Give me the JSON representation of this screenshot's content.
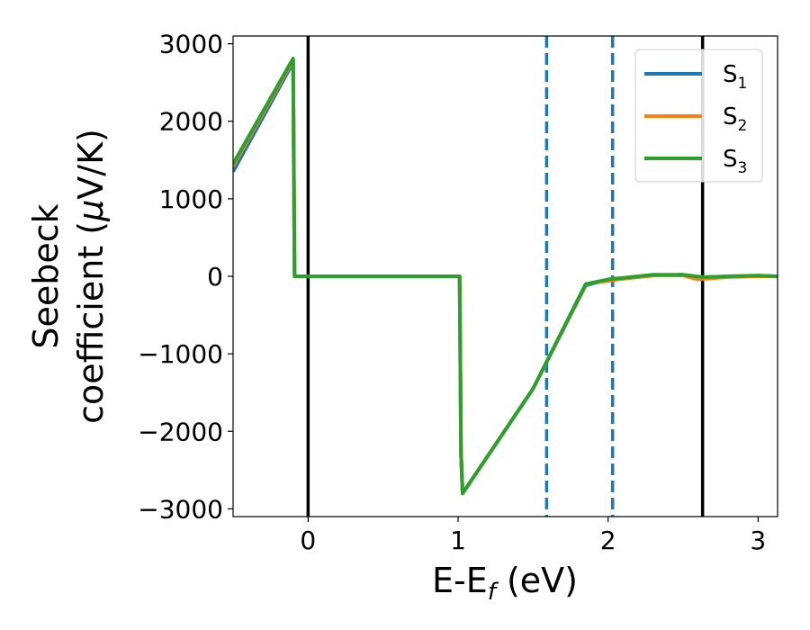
{
  "chart_data": {
    "type": "line",
    "title": "",
    "xlabel": {
      "main": "E-E",
      "sub": "f",
      "tail": " (eV)"
    },
    "ylabel": {
      "line1": "Seebeck",
      "line2_prefix": "coefficient  (",
      "mu": "μ",
      "line2_suffix": "V/K)"
    },
    "xlim": [
      -0.5,
      3.13
    ],
    "ylim": [
      -3100,
      3100
    ],
    "xticks": [
      0,
      1,
      2,
      3
    ],
    "xtick_labels": [
      "0",
      "1",
      "2",
      "3"
    ],
    "yticks": [
      3000,
      2000,
      1000,
      0,
      -1000,
      -2000,
      -3000
    ],
    "ytick_labels": [
      "3000",
      "2000",
      "1000",
      "0",
      "−1000",
      "−2000",
      "−3000"
    ],
    "grid": false,
    "legend_position": "top-right",
    "legend": [
      {
        "label": "S",
        "sub": "1",
        "color": "#1f77b4"
      },
      {
        "label": "S",
        "sub": "2",
        "color": "#ff7f0e"
      },
      {
        "label": "S",
        "sub": "3",
        "color": "#2ca02c"
      }
    ],
    "vertical_lines": [
      {
        "x": 0.0,
        "style": "solid",
        "color": "#000000"
      },
      {
        "x": 1.59,
        "style": "dashed",
        "color": "#1f77b4"
      },
      {
        "x": 2.03,
        "style": "dashed",
        "color": "#1f77b4"
      },
      {
        "x": 2.63,
        "style": "solid",
        "color": "#000000"
      }
    ],
    "series": [
      {
        "name": "S1",
        "color": "#1f77b4",
        "x": [
          -0.5,
          -0.1,
          -0.09,
          1.01,
          1.02,
          1.03,
          1.5,
          1.85,
          1.9,
          2.0,
          2.1,
          2.3,
          2.5,
          2.63,
          2.8,
          3.0,
          3.13
        ],
        "y": [
          1350,
          2760,
          0,
          0,
          -2300,
          -2800,
          -1450,
          -120,
          -90,
          -50,
          -30,
          10,
          20,
          -20,
          0,
          5,
          0
        ]
      },
      {
        "name": "S2",
        "color": "#ff7f0e",
        "x": [
          -0.5,
          -0.1,
          -0.09,
          1.01,
          1.02,
          1.03,
          1.5,
          1.85,
          1.9,
          2.0,
          2.1,
          2.3,
          2.5,
          2.6,
          2.8,
          3.0,
          3.13
        ],
        "y": [
          1420,
          2790,
          0,
          0,
          -2300,
          -2800,
          -1450,
          -110,
          -80,
          -60,
          -30,
          10,
          10,
          -40,
          -10,
          0,
          0
        ]
      },
      {
        "name": "S3",
        "color": "#2ca02c",
        "x": [
          -0.5,
          -0.1,
          -0.09,
          1.01,
          1.02,
          1.03,
          1.5,
          1.85,
          1.9,
          2.0,
          2.1,
          2.3,
          2.5,
          2.63,
          2.8,
          3.0,
          3.13
        ],
        "y": [
          1450,
          2810,
          0,
          0,
          -2300,
          -2800,
          -1450,
          -100,
          -80,
          -40,
          -20,
          20,
          20,
          -10,
          0,
          10,
          0
        ]
      }
    ]
  }
}
